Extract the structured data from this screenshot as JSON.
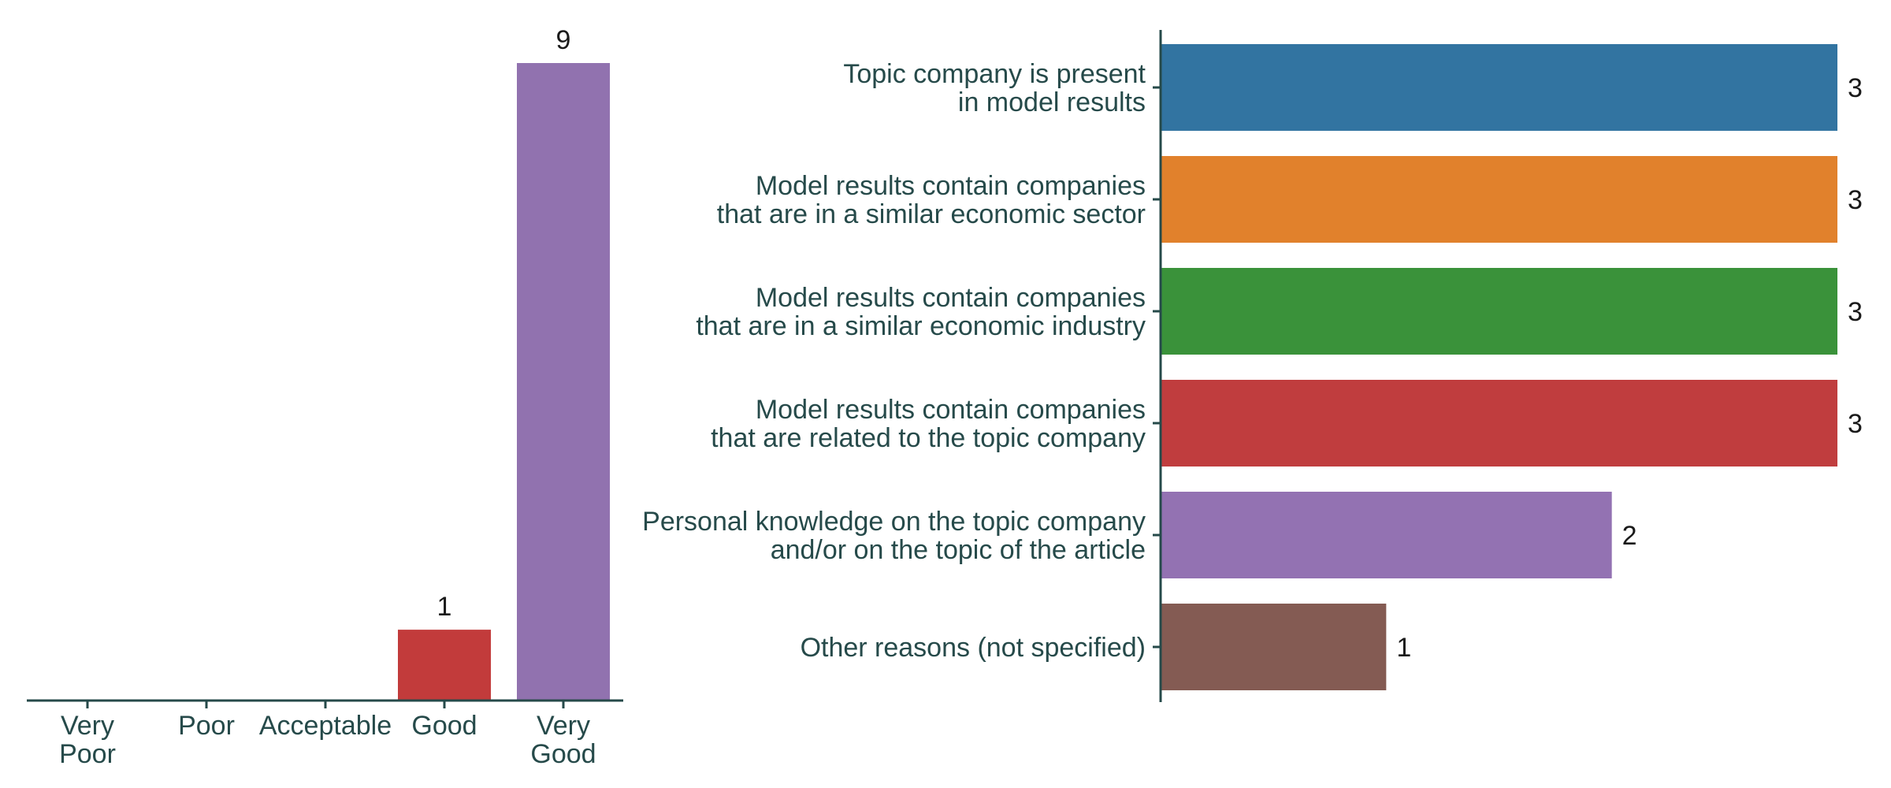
{
  "chart_data": [
    {
      "type": "bar",
      "orientation": "vertical",
      "title": "",
      "xlabel": "",
      "ylabel": "",
      "categories": [
        [
          "Very",
          "Poor"
        ],
        [
          "Poor"
        ],
        [
          "Acceptable"
        ],
        [
          "Good"
        ],
        [
          "Very",
          "Good"
        ]
      ],
      "values": [
        0,
        0,
        0,
        1,
        9
      ],
      "colors": [
        "#1f77b4",
        "#ff7f0e",
        "#2ca02c",
        "#c23b3b",
        "#9172af"
      ],
      "ylim": [
        0,
        9
      ],
      "grid": false,
      "legend": "none"
    },
    {
      "type": "bar",
      "orientation": "horizontal",
      "title": "",
      "xlabel": "",
      "ylabel": "",
      "categories": [
        [
          "Topic company is present",
          "in model results"
        ],
        [
          "Model results contain companies",
          "that are in a similar economic sector"
        ],
        [
          "Model results contain companies",
          "that are in a similar economic industry"
        ],
        [
          "Model results contain companies",
          "that are related to the topic company"
        ],
        [
          "Personal knowledge on the topic company",
          "and/or on the topic of the article"
        ],
        [
          "Other reasons (not specified)"
        ]
      ],
      "values": [
        3,
        3,
        3,
        3,
        2,
        1
      ],
      "colors": [
        "#3274a1",
        "#e1812c",
        "#3a923a",
        "#c03d3e",
        "#9372b2",
        "#845b53"
      ],
      "xlim": [
        0,
        3
      ],
      "grid": false,
      "legend": "none"
    }
  ]
}
